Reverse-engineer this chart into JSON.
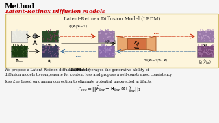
{
  "title": "Method",
  "subtitle": "Latent-Retinex Diffusion Models",
  "subtitle_color": "#cc0000",
  "box_title": "Latent-Retinex Diffusion Model (LRDM)",
  "box_bg": "#fdf5dc",
  "box_border": "#d4c070",
  "body_text_1": "We propose a Latent-Retinex diffusion model (",
  "body_text_bold": "LRDM",
  "body_text_2": ") that leverages the generative ability of",
  "body_line2": "diffusion models to compensate for content loss and propose a self-constrained consistency",
  "body_line3": "loss ℒₛ⁣⁣ based on gamma correction to eliminate potential unexpected artifacts.",
  "formula": "$\\mathcal{L}_{scc} = ||\\hat{\\mathcal{F}}_{low} - \\mathbf{R}_{low}\\otimes\\mathbf{L}^{\\gamma}_{low}||_1$",
  "bg_color": "#f5f5f5",
  "arrow_label_top": "$q(\\mathbf{x}_t|\\mathbf{x}_{t-1})$",
  "arrow_label_bot": "$p_\\theta(\\mathbf{x}_{t-1}|\\mathbf{x}_t, \\mathbf{x})$",
  "encoder_label": "$\\hat{x}(\\mathcal{F}_{low})$",
  "unet_label": "$\\epsilon_\\theta$",
  "img_colors": {
    "lhigh": [
      "#e8e8e0",
      "#f0f0e8"
    ],
    "x0_top": [
      "#2a4a28",
      "#7a3a5a"
    ],
    "x0_bot": [
      "#3a3a5a",
      "#8a5a8a"
    ],
    "xmid_top": [
      "#9a7aaa",
      "#c0a0c8"
    ],
    "xmid_bot": [
      "#8a6aaa",
      "#b090c8"
    ],
    "xT_top": [
      "#9a7aaa",
      "#c0a0c8"
    ],
    "xT_bot": [
      "#8a5a9a",
      "#b080b8"
    ],
    "rlow": [
      "#1a3a12",
      "#3a5a28"
    ],
    "g0": [
      "#7a4a7a",
      "#aa7aaa"
    ]
  },
  "unet_color_outer": "#e8a870",
  "unet_color_inner": "#d47040",
  "unet_color_mid": "#c86030"
}
